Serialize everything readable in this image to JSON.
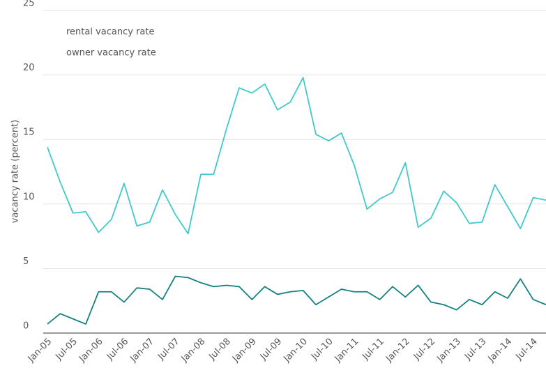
{
  "chart_data": {
    "type": "line",
    "y_label": "vacancy rate (percent)",
    "categories": [
      "Jan-05",
      null,
      "Jul-05",
      null,
      "Jan-06",
      null,
      "Jul-06",
      null,
      "Jan-07",
      null,
      "Jul-07",
      null,
      "Jan-08",
      null,
      "Jul-08",
      null,
      "Jan-09",
      null,
      "Jul-09",
      null,
      "Jan-10",
      null,
      "Jul-10",
      null,
      "Jan-11",
      null,
      "Jul-11",
      null,
      "Jan-12",
      null,
      "Jul-12",
      null,
      "Jan-13",
      null,
      "Jul-13",
      null,
      "Jan-14",
      null,
      "Jul-14",
      null
    ],
    "series": [
      {
        "name": "rental vacancy rate",
        "color": "#3fc9cc",
        "values": [
          14.4,
          11.7,
          9.3,
          9.4,
          7.8,
          8.8,
          11.6,
          8.3,
          8.6,
          11.1,
          9.2,
          7.7,
          12.3,
          12.3,
          15.8,
          19.0,
          18.6,
          19.3,
          17.3,
          17.9,
          19.8,
          15.4,
          14.9,
          15.5,
          13.0,
          9.6,
          10.4,
          10.9,
          13.2,
          8.2,
          8.9,
          11.0,
          10.1,
          8.5,
          8.6,
          11.5,
          9.8,
          8.1,
          10.5,
          10.3
        ]
      },
      {
        "name": "owner vacancy rate",
        "color": "#15807f",
        "values": [
          0.7,
          1.5,
          1.1,
          0.7,
          3.2,
          3.2,
          2.4,
          3.5,
          3.4,
          2.6,
          4.4,
          4.3,
          3.9,
          3.6,
          3.7,
          3.6,
          2.6,
          3.6,
          3.0,
          3.2,
          3.3,
          2.2,
          2.8,
          3.4,
          3.2,
          3.2,
          2.6,
          3.6,
          2.8,
          3.7,
          2.4,
          2.2,
          1.8,
          2.6,
          2.2,
          3.2,
          2.7,
          4.2,
          2.6,
          2.2
        ]
      }
    ],
    "ylim": [
      0,
      25
    ],
    "yticks": [
      0,
      5,
      10,
      15,
      20,
      25
    ],
    "grid": true
  }
}
